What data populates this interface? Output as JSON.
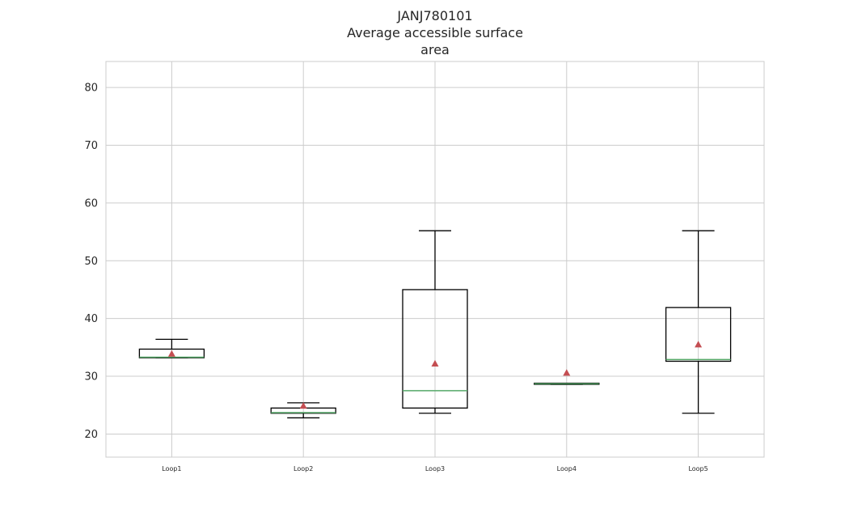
{
  "chart_data": {
    "type": "box",
    "title_lines": [
      "JANJ780101",
      "Average accessible surface",
      "area"
    ],
    "xlabel": "",
    "ylabel": "",
    "ylim": [
      16,
      84.5
    ],
    "yticks": [
      20,
      30,
      40,
      50,
      60,
      70,
      80
    ],
    "grid": true,
    "legend": "none",
    "categories": [
      "Loop1",
      "Loop2",
      "Loop3",
      "Loop4",
      "Loop5"
    ],
    "boxes": [
      {
        "label": "Loop1",
        "whisker_low": 33.2,
        "q1": 33.2,
        "median": 33.3,
        "q3": 34.7,
        "whisker_high": 36.4,
        "mean": 33.9
      },
      {
        "label": "Loop2",
        "whisker_low": 22.8,
        "q1": 23.6,
        "median": 23.7,
        "q3": 24.5,
        "whisker_high": 25.4,
        "mean": 24.9
      },
      {
        "label": "Loop3",
        "whisker_low": 23.6,
        "q1": 24.5,
        "median": 27.5,
        "q3": 45.0,
        "whisker_high": 55.2,
        "mean": 32.2
      },
      {
        "label": "Loop4",
        "whisker_low": 28.6,
        "q1": 28.6,
        "median": 28.7,
        "q3": 28.8,
        "whisker_high": 28.8,
        "mean": 30.6
      },
      {
        "label": "Loop5",
        "whisker_low": 23.6,
        "q1": 32.6,
        "median": 32.9,
        "q3": 41.9,
        "whisker_high": 55.2,
        "mean": 35.5
      }
    ],
    "colors": {
      "box": "#000000",
      "median": "#55a868",
      "mean": "#c44e52",
      "grid": "#cccccc",
      "axes_edge": "#cccccc",
      "text": "#262626"
    }
  }
}
